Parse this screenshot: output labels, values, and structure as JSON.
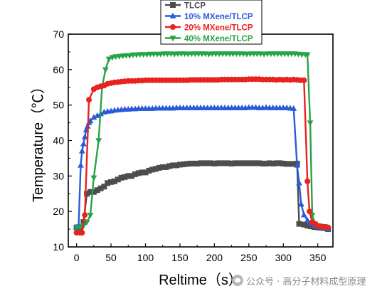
{
  "chart_data": {
    "type": "line",
    "title": "",
    "xlabel": "Reltime（s）",
    "ylabel": "Temperature（℃）",
    "xlim": [
      -12,
      372
    ],
    "ylim": [
      10,
      70
    ],
    "xticks": [
      0,
      50,
      100,
      150,
      200,
      250,
      300,
      350
    ],
    "yticks": [
      10,
      20,
      30,
      40,
      50,
      60,
      70
    ],
    "grid": false,
    "legend": "top-center",
    "series": [
      {
        "name": "TLCP",
        "color": "#4d4d4d",
        "marker": "square",
        "points": [
          [
            0,
            15.5
          ],
          [
            5,
            15.5
          ],
          [
            10,
            17
          ],
          [
            15,
            25
          ],
          [
            20,
            25.5
          ],
          [
            25,
            25.5
          ],
          [
            30,
            26
          ],
          [
            35,
            26.5
          ],
          [
            40,
            27
          ],
          [
            45,
            28
          ],
          [
            50,
            28.3
          ],
          [
            55,
            28.5
          ],
          [
            60,
            29
          ],
          [
            65,
            29.5
          ],
          [
            70,
            29.7
          ],
          [
            75,
            30
          ],
          [
            80,
            30
          ],
          [
            85,
            30.5
          ],
          [
            90,
            30.8
          ],
          [
            95,
            31
          ],
          [
            100,
            31
          ],
          [
            105,
            31.5
          ],
          [
            110,
            31.8
          ],
          [
            115,
            32
          ],
          [
            120,
            32.3
          ],
          [
            125,
            32.5
          ],
          [
            130,
            32.5
          ],
          [
            135,
            32.8
          ],
          [
            140,
            33
          ],
          [
            145,
            33
          ],
          [
            150,
            33.2
          ],
          [
            155,
            33.3
          ],
          [
            160,
            33.4
          ],
          [
            165,
            33.5
          ],
          [
            170,
            33.5
          ],
          [
            175,
            33.5
          ],
          [
            180,
            33.6
          ],
          [
            185,
            33.6
          ],
          [
            190,
            33.6
          ],
          [
            195,
            33.6
          ],
          [
            200,
            33.5
          ],
          [
            205,
            33.6
          ],
          [
            210,
            33.6
          ],
          [
            215,
            33.6
          ],
          [
            220,
            33.6
          ],
          [
            225,
            33.5
          ],
          [
            230,
            33.6
          ],
          [
            235,
            33.6
          ],
          [
            240,
            33.6
          ],
          [
            245,
            33.6
          ],
          [
            250,
            33.6
          ],
          [
            255,
            33.6
          ],
          [
            260,
            33.6
          ],
          [
            265,
            33.6
          ],
          [
            270,
            33.5
          ],
          [
            275,
            33.5
          ],
          [
            280,
            33.6
          ],
          [
            285,
            33.5
          ],
          [
            290,
            33.6
          ],
          [
            295,
            33.6
          ],
          [
            300,
            33.5
          ],
          [
            305,
            33.4
          ],
          [
            310,
            33.4
          ],
          [
            315,
            33.4
          ],
          [
            320,
            33.5
          ],
          [
            323,
            16.5
          ],
          [
            330,
            16.3
          ],
          [
            335,
            16
          ],
          [
            340,
            15.8
          ],
          [
            345,
            15.6
          ],
          [
            350,
            15.5
          ],
          [
            355,
            15.4
          ],
          [
            360,
            15.3
          ],
          [
            365,
            15
          ]
        ]
      },
      {
        "name": "10% MXene/TLCP",
        "color": "#2a5bd7",
        "marker": "triangle-up",
        "points": [
          [
            0,
            15.5
          ],
          [
            3,
            16
          ],
          [
            6,
            33
          ],
          [
            8,
            37
          ],
          [
            10,
            39
          ],
          [
            12,
            41
          ],
          [
            14,
            43
          ],
          [
            16,
            44
          ],
          [
            18,
            45
          ],
          [
            20,
            45.5
          ],
          [
            25,
            46.5
          ],
          [
            30,
            47
          ],
          [
            35,
            47.5
          ],
          [
            40,
            48
          ],
          [
            45,
            48.2
          ],
          [
            50,
            48.3
          ],
          [
            55,
            48.5
          ],
          [
            60,
            48.6
          ],
          [
            65,
            48.7
          ],
          [
            70,
            48.8
          ],
          [
            75,
            48.8
          ],
          [
            80,
            48.9
          ],
          [
            85,
            48.9
          ],
          [
            90,
            49
          ],
          [
            95,
            49
          ],
          [
            100,
            49
          ],
          [
            105,
            49
          ],
          [
            110,
            49
          ],
          [
            115,
            49.1
          ],
          [
            120,
            49.1
          ],
          [
            125,
            49.1
          ],
          [
            130,
            49.1
          ],
          [
            135,
            49.1
          ],
          [
            140,
            49.1
          ],
          [
            145,
            49.2
          ],
          [
            150,
            49.2
          ],
          [
            155,
            49.2
          ],
          [
            160,
            49.2
          ],
          [
            165,
            49.2
          ],
          [
            170,
            49.2
          ],
          [
            175,
            49.2
          ],
          [
            180,
            49.2
          ],
          [
            185,
            49.2
          ],
          [
            190,
            49.2
          ],
          [
            195,
            49.2
          ],
          [
            200,
            49.2
          ],
          [
            205,
            49.2
          ],
          [
            210,
            49.2
          ],
          [
            215,
            49.2
          ],
          [
            220,
            49.2
          ],
          [
            225,
            49.2
          ],
          [
            230,
            49.2
          ],
          [
            235,
            49.2
          ],
          [
            240,
            49.2
          ],
          [
            245,
            49.2
          ],
          [
            250,
            49.3
          ],
          [
            255,
            49.3
          ],
          [
            260,
            49.3
          ],
          [
            265,
            49.2
          ],
          [
            270,
            49.2
          ],
          [
            275,
            49.3
          ],
          [
            280,
            49.2
          ],
          [
            285,
            49.2
          ],
          [
            290,
            49.2
          ],
          [
            295,
            49.2
          ],
          [
            300,
            49.2
          ],
          [
            305,
            49.2
          ],
          [
            310,
            49.1
          ],
          [
            315,
            49
          ],
          [
            320,
            33
          ],
          [
            323,
            28
          ],
          [
            326,
            22
          ],
          [
            330,
            19
          ],
          [
            335,
            17.5
          ],
          [
            340,
            16.5
          ],
          [
            345,
            16
          ],
          [
            350,
            15.8
          ],
          [
            355,
            15.5
          ],
          [
            360,
            15.3
          ],
          [
            365,
            15
          ]
        ]
      },
      {
        "name": "20% MXene/TLCP",
        "color": "#e8221f",
        "marker": "circle",
        "points": [
          [
            0,
            14
          ],
          [
            5,
            14
          ],
          [
            8,
            14
          ],
          [
            12,
            19
          ],
          [
            18,
            51.5
          ],
          [
            25,
            54.5
          ],
          [
            30,
            55
          ],
          [
            35,
            55.3
          ],
          [
            40,
            55.5
          ],
          [
            45,
            56
          ],
          [
            50,
            56.2
          ],
          [
            55,
            56.4
          ],
          [
            60,
            56.5
          ],
          [
            65,
            56.6
          ],
          [
            70,
            56.7
          ],
          [
            75,
            56.8
          ],
          [
            80,
            56.8
          ],
          [
            85,
            56.8
          ],
          [
            90,
            56.9
          ],
          [
            95,
            56.9
          ],
          [
            100,
            57
          ],
          [
            105,
            57
          ],
          [
            110,
            57
          ],
          [
            115,
            57
          ],
          [
            120,
            57
          ],
          [
            125,
            57
          ],
          [
            130,
            57
          ],
          [
            135,
            57
          ],
          [
            140,
            57
          ],
          [
            145,
            57
          ],
          [
            150,
            57
          ],
          [
            155,
            57
          ],
          [
            160,
            57
          ],
          [
            165,
            57.1
          ],
          [
            170,
            57.1
          ],
          [
            175,
            57.1
          ],
          [
            180,
            57.1
          ],
          [
            185,
            57.1
          ],
          [
            190,
            57.1
          ],
          [
            195,
            57.1
          ],
          [
            200,
            57.1
          ],
          [
            205,
            57.1
          ],
          [
            210,
            57.2
          ],
          [
            215,
            57.2
          ],
          [
            220,
            57.2
          ],
          [
            225,
            57.2
          ],
          [
            230,
            57.2
          ],
          [
            235,
            57.2
          ],
          [
            240,
            57.2
          ],
          [
            245,
            57.2
          ],
          [
            250,
            57.3
          ],
          [
            255,
            57.3
          ],
          [
            260,
            57.3
          ],
          [
            265,
            57.3
          ],
          [
            270,
            57.2
          ],
          [
            275,
            57.2
          ],
          [
            280,
            57.2
          ],
          [
            285,
            57.2
          ],
          [
            290,
            57.1
          ],
          [
            295,
            57.2
          ],
          [
            300,
            57.1
          ],
          [
            305,
            57.2
          ],
          [
            310,
            57.1
          ],
          [
            315,
            57.2
          ],
          [
            320,
            57.1
          ],
          [
            325,
            57
          ],
          [
            330,
            57
          ],
          [
            335,
            28.5
          ],
          [
            338,
            20
          ],
          [
            342,
            17
          ],
          [
            346,
            16.5
          ],
          [
            350,
            16
          ],
          [
            355,
            15.8
          ],
          [
            360,
            15.6
          ],
          [
            365,
            15.5
          ]
        ]
      },
      {
        "name": "40% MXene/TLCP",
        "color": "#27a347",
        "marker": "triangle-down",
        "points": [
          [
            0,
            15.5
          ],
          [
            5,
            15.5
          ],
          [
            10,
            16
          ],
          [
            15,
            17
          ],
          [
            20,
            19
          ],
          [
            25,
            29.5
          ],
          [
            32,
            40
          ],
          [
            37,
            55
          ],
          [
            42,
            60
          ],
          [
            47,
            63
          ],
          [
            52,
            63.5
          ],
          [
            57,
            63.7
          ],
          [
            62,
            63.8
          ],
          [
            67,
            63.9
          ],
          [
            72,
            64
          ],
          [
            77,
            64
          ],
          [
            82,
            64.2
          ],
          [
            87,
            64.2
          ],
          [
            92,
            64.3
          ],
          [
            97,
            64.3
          ],
          [
            102,
            64.3
          ],
          [
            107,
            64.4
          ],
          [
            112,
            64.4
          ],
          [
            117,
            64.4
          ],
          [
            122,
            64.4
          ],
          [
            127,
            64.5
          ],
          [
            132,
            64.5
          ],
          [
            137,
            64.5
          ],
          [
            142,
            64.4
          ],
          [
            147,
            64.5
          ],
          [
            152,
            64.5
          ],
          [
            157,
            64.5
          ],
          [
            162,
            64.4
          ],
          [
            167,
            64.5
          ],
          [
            172,
            64.5
          ],
          [
            177,
            64.5
          ],
          [
            182,
            64.5
          ],
          [
            187,
            64.5
          ],
          [
            192,
            64.4
          ],
          [
            197,
            64.5
          ],
          [
            202,
            64.5
          ],
          [
            207,
            64.5
          ],
          [
            212,
            64.5
          ],
          [
            217,
            64.5
          ],
          [
            222,
            64.5
          ],
          [
            227,
            64.5
          ],
          [
            232,
            64.5
          ],
          [
            237,
            64.5
          ],
          [
            242,
            64.5
          ],
          [
            247,
            64.4
          ],
          [
            252,
            64.5
          ],
          [
            257,
            64.5
          ],
          [
            262,
            64.5
          ],
          [
            267,
            64.5
          ],
          [
            272,
            64.4
          ],
          [
            277,
            64.5
          ],
          [
            282,
            64.5
          ],
          [
            287,
            64.5
          ],
          [
            292,
            64.5
          ],
          [
            297,
            64.5
          ],
          [
            302,
            64.5
          ],
          [
            307,
            64.5
          ],
          [
            312,
            64.5
          ],
          [
            317,
            64.5
          ],
          [
            322,
            64.4
          ],
          [
            327,
            64.3
          ],
          [
            332,
            64.3
          ],
          [
            335,
            64.2
          ],
          [
            339,
            45
          ],
          [
            342,
            19
          ],
          [
            346,
            16.5
          ],
          [
            350,
            16
          ],
          [
            355,
            15.8
          ],
          [
            360,
            15.8
          ]
        ]
      }
    ]
  },
  "watermark": {
    "icon": "wechat-icon",
    "text": "公众号 · 高分子材料成型原理"
  }
}
